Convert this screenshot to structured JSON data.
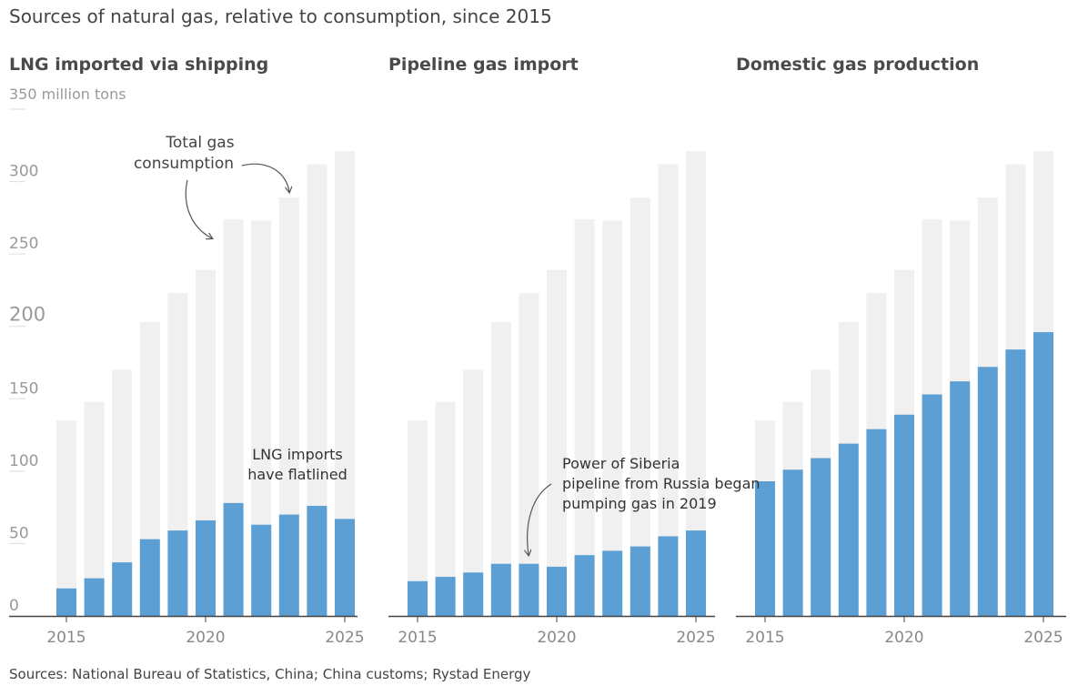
{
  "title": "Sources of natural gas, relative to consumption, since 2015",
  "source": "Sources: National Bureau of Statistics, China; China customs; Rystad Energy",
  "unit_label": "350 million tons",
  "colors": {
    "consumption": "#f0f0f0",
    "source": "#5b9fd4",
    "axis": "#444444",
    "tick": "#999999"
  },
  "chart_data": {
    "type": "bar",
    "categories": [
      2015,
      2016,
      2017,
      2018,
      2019,
      2020,
      2021,
      2022,
      2023,
      2024,
      2025
    ],
    "ylim": [
      0,
      350
    ],
    "y_ticks": [
      "0",
      "50",
      "100",
      "150",
      "200",
      "250",
      "300"
    ],
    "x_ticks": [
      "2015",
      "2020",
      "2025"
    ],
    "consumption": [
      135,
      148,
      170,
      203,
      223,
      239,
      274,
      273,
      289,
      312,
      321
    ],
    "panels": [
      {
        "title": "LNG imported via shipping",
        "values": [
          19,
          26,
          37,
          53,
          59,
          66,
          78,
          63,
          70,
          76,
          67
        ],
        "annotations": [
          "Total gas consumption",
          "LNG imports have flatlined"
        ]
      },
      {
        "title": "Pipeline gas import",
        "values": [
          24,
          27,
          30,
          36,
          36,
          34,
          42,
          45,
          48,
          55,
          59
        ],
        "annotations": [
          "Power of Siberia pipeline from Russia began pumping gas in 2019"
        ]
      },
      {
        "title": "Domestic gas production",
        "values": [
          93,
          101,
          109,
          119,
          129,
          139,
          153,
          162,
          172,
          184,
          196
        ],
        "annotations": []
      }
    ]
  }
}
